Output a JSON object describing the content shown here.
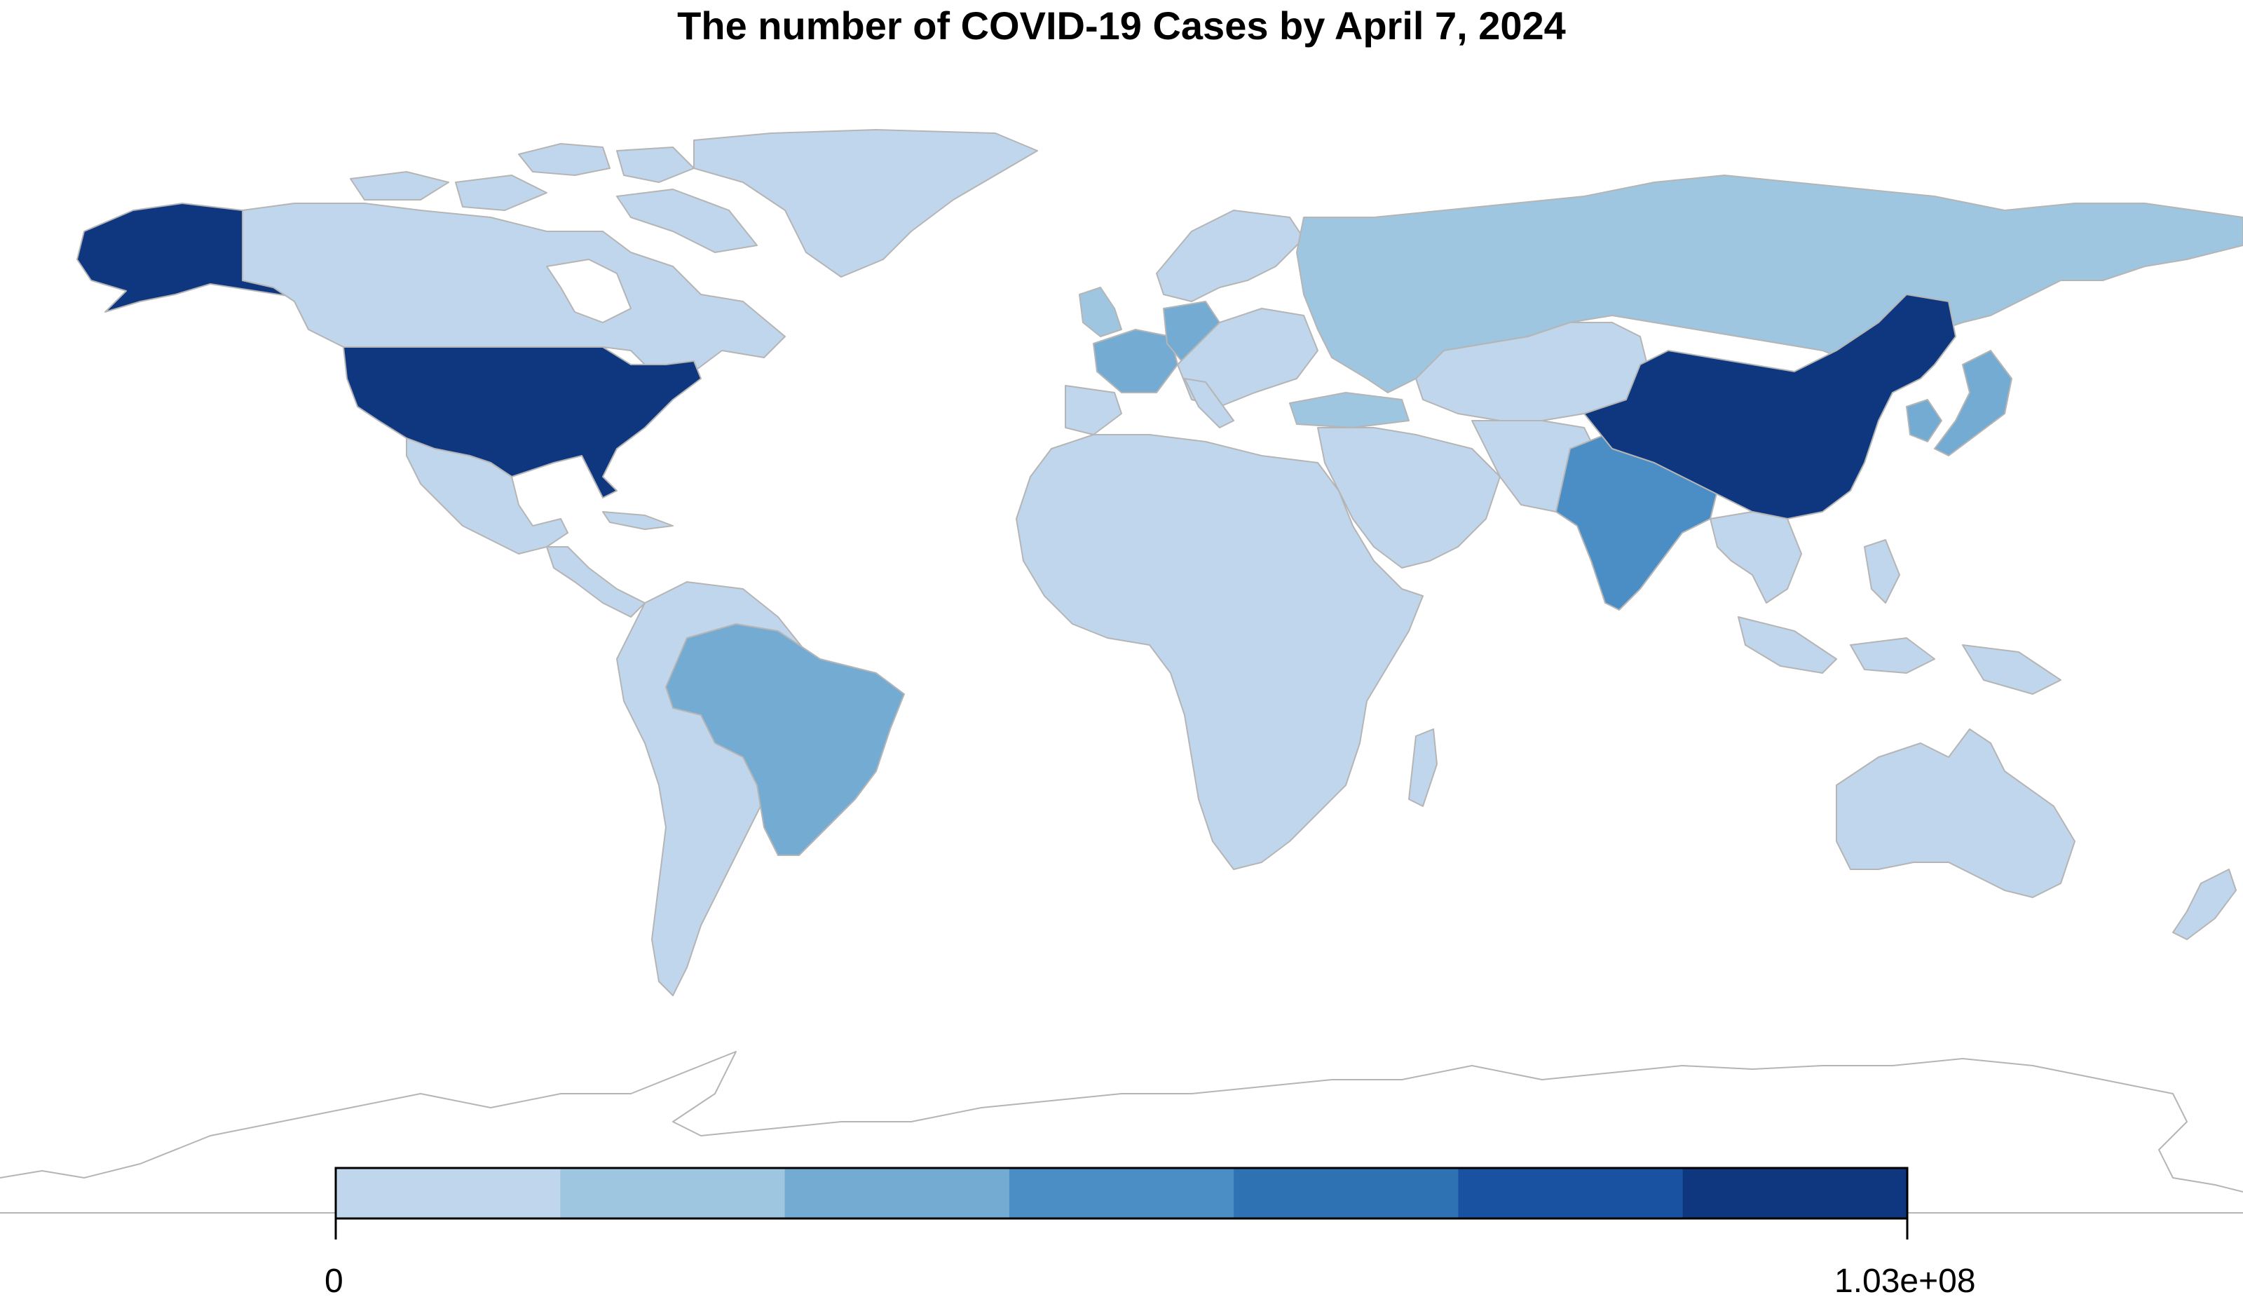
{
  "title": "The number of COVID-19 Cases by April 7, 2024",
  "legend": {
    "min_label": "0",
    "max_label": "1.03e+08",
    "colors": [
      "#c0d6ec",
      "#9ec6e0",
      "#74abd3",
      "#4b8ec6",
      "#2e72b3",
      "#1852a0",
      "#0e3780"
    ]
  },
  "colors": {
    "land_default": "#c0d6ec",
    "border": "#b5b5b5",
    "background": "#ffffff"
  },
  "regions": [
    {
      "name": "United States",
      "color": "#0e3780"
    },
    {
      "name": "Alaska",
      "color": "#0e3780"
    },
    {
      "name": "China",
      "color": "#0e3780"
    },
    {
      "name": "India",
      "color": "#4b8ec6"
    },
    {
      "name": "France",
      "color": "#74abd3"
    },
    {
      "name": "Germany",
      "color": "#74abd3"
    },
    {
      "name": "Brazil",
      "color": "#74abd3"
    },
    {
      "name": "Japan",
      "color": "#74abd3"
    },
    {
      "name": "South Korea",
      "color": "#74abd3"
    },
    {
      "name": "Russia",
      "color": "#9ec6e0"
    },
    {
      "name": "United Kingdom",
      "color": "#9ec6e0"
    },
    {
      "name": "Turkey",
      "color": "#9ec6e0"
    }
  ]
}
